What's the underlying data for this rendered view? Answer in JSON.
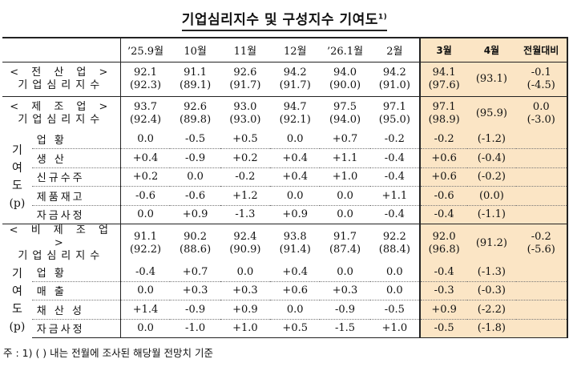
{
  "title": "기업심리지수 및 구성지수 기여도",
  "title_sup": "1)",
  "header": {
    "months": [
      "’25.9월",
      "10월",
      "11월",
      "12월",
      "’26.1월",
      "2월"
    ],
    "highlight": [
      "3월",
      "4월",
      "전월대비"
    ]
  },
  "groups": [
    {
      "label_top": "< 전 산 업 >",
      "label_bottom": "기업심리지수",
      "values": [
        [
          "92.1",
          "(92.3)"
        ],
        [
          "91.1",
          "(89.1)"
        ],
        [
          "92.6",
          "(91.7)"
        ],
        [
          "94.2",
          "(91.7)"
        ],
        [
          "94.0",
          "(90.0)"
        ],
        [
          "94.2",
          "(91.0)"
        ],
        [
          "94.1",
          "(97.6)"
        ],
        [
          "",
          "(93.1)"
        ],
        [
          "-0.1",
          "(-4.5)"
        ]
      ]
    },
    {
      "label_top": "< 제 조 업 >",
      "label_bottom": "기업심리지수",
      "values": [
        [
          "93.7",
          "(92.4)"
        ],
        [
          "92.6",
          "(89.8)"
        ],
        [
          "93.0",
          "(93.0)"
        ],
        [
          "94.7",
          "(92.1)"
        ],
        [
          "97.5",
          "(94.0)"
        ],
        [
          "97.1",
          "(95.0)"
        ],
        [
          "97.1",
          "(98.9)"
        ],
        [
          "",
          "(95.9)"
        ],
        [
          "0.0",
          "(-3.0)"
        ]
      ],
      "side_label": [
        "기",
        "여",
        "도",
        "(p)"
      ],
      "rows": [
        {
          "label": "업 황",
          "values": [
            "0.0",
            "-0.5",
            "+0.5",
            "0.0",
            "+0.7",
            "-0.2",
            "-0.2",
            "(-1.2)",
            ""
          ]
        },
        {
          "label": "생 산",
          "values": [
            "+0.4",
            "-0.9",
            "+0.2",
            "+0.4",
            "+1.1",
            "-0.4",
            "+0.6",
            "(-0.4)",
            ""
          ]
        },
        {
          "label": "신규수주",
          "values": [
            "+0.2",
            "0.0",
            "-0.2",
            "+0.4",
            "+1.0",
            "-0.4",
            "+0.6",
            "(-0.2)",
            ""
          ]
        },
        {
          "label": "제품재고",
          "values": [
            "-0.6",
            "-0.6",
            "+1.2",
            "0.0",
            "0.0",
            "+1.1",
            "-0.6",
            "(0.0)",
            ""
          ]
        },
        {
          "label": "자금사정",
          "values": [
            "0.0",
            "+0.9",
            "-1.3",
            "+0.9",
            "0.0",
            "-0.4",
            "-0.4",
            "(-1.1)",
            ""
          ]
        }
      ]
    },
    {
      "label_top": "< 비 제 조 업 >",
      "label_bottom": "기업심리지수",
      "values": [
        [
          "91.1",
          "(92.2)"
        ],
        [
          "90.2",
          "(88.6)"
        ],
        [
          "92.4",
          "(90.9)"
        ],
        [
          "93.8",
          "(91.4)"
        ],
        [
          "91.7",
          "(87.4)"
        ],
        [
          "92.2",
          "(88.4)"
        ],
        [
          "92.0",
          "(96.8)"
        ],
        [
          "",
          "(91.2)"
        ],
        [
          "-0.2",
          "(-5.6)"
        ]
      ],
      "side_label": [
        "기",
        "여",
        "도",
        "(p)"
      ],
      "rows": [
        {
          "label": "업 황",
          "values": [
            "-0.4",
            "+0.7",
            "0.0",
            "+0.4",
            "0.0",
            "0.0",
            "-0.4",
            "(-1.3)",
            ""
          ]
        },
        {
          "label": "매 출",
          "values": [
            "0.0",
            "+0.3",
            "+0.3",
            "+0.6",
            "+0.3",
            "0.0",
            "-0.3",
            "(-0.3)",
            ""
          ]
        },
        {
          "label": "채 산 성",
          "values": [
            "+1.4",
            "-0.9",
            "+0.9",
            "0.0",
            "-0.9",
            "-0.5",
            "+0.9",
            "(-2.2)",
            ""
          ]
        },
        {
          "label": "자금사정",
          "values": [
            "0.0",
            "-1.0",
            "+1.0",
            "+0.5",
            "-1.5",
            "+1.0",
            "-0.5",
            "(-1.8)",
            ""
          ]
        }
      ]
    }
  ],
  "note": "주 : 1) (   ) 내는 전월에 조사된 해당월 전망치 기준",
  "colors": {
    "highlight_bg": "#fbe5c5",
    "text": "#111111",
    "border": "#222222"
  }
}
